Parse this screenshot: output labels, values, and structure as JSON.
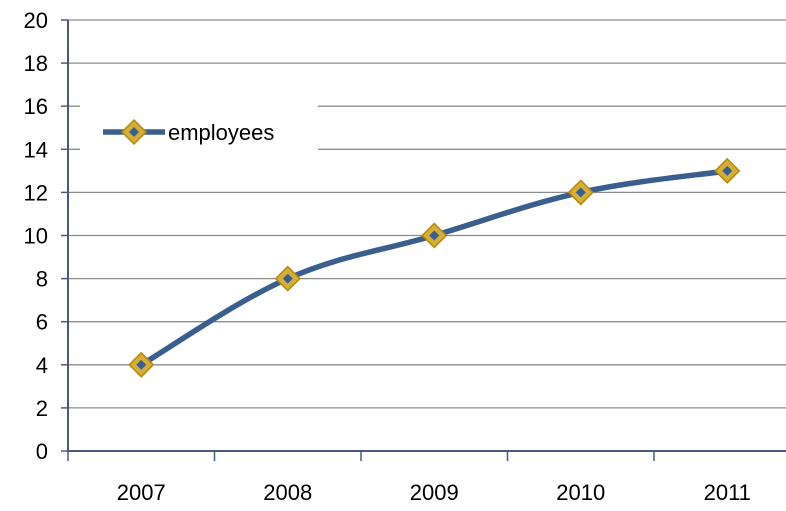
{
  "chart_data": {
    "type": "line",
    "title": "",
    "xlabel": "",
    "ylabel": "",
    "categories": [
      "2007",
      "2008",
      "2009",
      "2010",
      "2011"
    ],
    "series": [
      {
        "name": "employees",
        "values": [
          4,
          8,
          10,
          12,
          13
        ],
        "color": "#3A5F8F",
        "marker": "diamond",
        "marker_color": "#D4AF37"
      }
    ],
    "ylim": [
      0,
      20
    ],
    "yticks": [
      "0",
      "2",
      "4",
      "6",
      "8",
      "10",
      "12",
      "14",
      "16",
      "18",
      "20"
    ],
    "grid": true,
    "gridline_color": "#8C8C8C",
    "legend": {
      "position": "top-left",
      "entries": [
        "employees"
      ]
    }
  }
}
